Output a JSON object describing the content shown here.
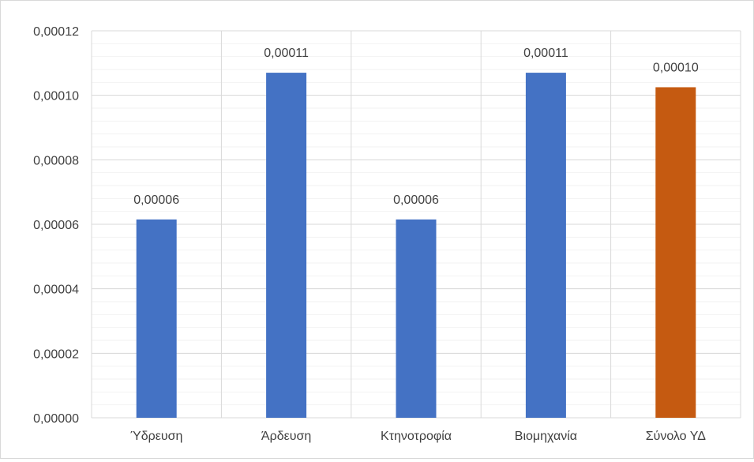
{
  "chart_data": {
    "type": "bar",
    "title": "",
    "xlabel": "",
    "ylabel": "",
    "categories": [
      "Ύδρευση",
      "Άρδευση",
      "Κτηνοτροφία",
      "Βιομηχανία",
      "Σύνολο ΥΔ"
    ],
    "values": [
      6.15e-05,
      0.000107,
      6.15e-05,
      0.000107,
      0.0001025
    ],
    "data_labels": [
      "0,00006",
      "0,00011",
      "0,00006",
      "0,00011",
      "0,00010"
    ],
    "bar_colors": [
      "#4472C4",
      "#4472C4",
      "#4472C4",
      "#4472C4",
      "#C55A11"
    ],
    "ylim": [
      0,
      0.00012
    ],
    "yticks": [
      0,
      2e-05,
      4e-05,
      6e-05,
      8e-05,
      0.0001,
      0.00012
    ],
    "ytick_labels": [
      "0,00000",
      "0,00002",
      "0,00004",
      "0,00006",
      "0,00008",
      "0,00010",
      "0,00012"
    ],
    "minor_step": 4e-06,
    "grid": true,
    "legend": "none"
  }
}
